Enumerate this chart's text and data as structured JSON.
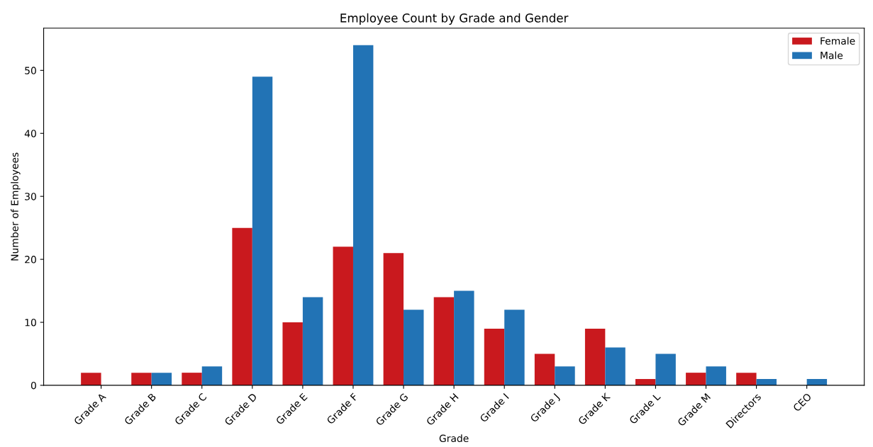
{
  "chart_data": {
    "type": "bar",
    "title": "Employee Count by Grade and Gender",
    "xlabel": "Grade",
    "ylabel": "Number of Employees",
    "categories": [
      "Grade A",
      "Grade B",
      "Grade C",
      "Grade D",
      "Grade E",
      "Grade F",
      "Grade G",
      "Grade H",
      "Grade I",
      "Grade J",
      "Grade K",
      "Grade L",
      "Grade M",
      "Directors",
      "CEO"
    ],
    "series": [
      {
        "name": "Female",
        "color": "#c9191e",
        "values": [
          2,
          2,
          2,
          25,
          10,
          22,
          21,
          14,
          9,
          5,
          9,
          1,
          2,
          2,
          0
        ]
      },
      {
        "name": "Male",
        "color": "#2273b5",
        "values": [
          0,
          2,
          3,
          49,
          14,
          54,
          12,
          15,
          12,
          3,
          6,
          5,
          3,
          1,
          1
        ]
      }
    ],
    "ylim": [
      0,
      56.7
    ],
    "yticks": [
      0,
      10,
      20,
      30,
      40,
      50
    ],
    "legend": "top right",
    "grid": false
  }
}
